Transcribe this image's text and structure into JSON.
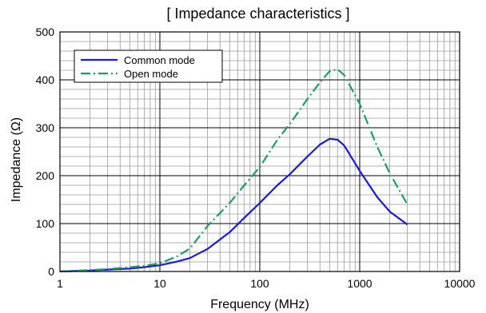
{
  "chart_data": {
    "type": "line",
    "title": "[ Impedance characteristics ]",
    "xlabel": "Frequency (MHz)",
    "ylabel": "Impedance (Ω)",
    "x_scale": "log",
    "xlim": [
      1,
      10000
    ],
    "ylim": [
      0,
      500
    ],
    "x_ticks": [
      1,
      10,
      100,
      1000,
      10000
    ],
    "x_tick_labels": [
      "1",
      "10",
      "100",
      "1000",
      "10000"
    ],
    "y_ticks": [
      0,
      100,
      200,
      300,
      400,
      500
    ],
    "y_tick_labels": [
      "0",
      "100",
      "200",
      "300",
      "400",
      "500"
    ],
    "grid": true,
    "legend_position": "top-left",
    "series": [
      {
        "name": "Common mode",
        "color": "#1a1adc",
        "style": "solid",
        "x": [
          1,
          2,
          3,
          5,
          7,
          10,
          15,
          20,
          30,
          50,
          70,
          100,
          150,
          200,
          300,
          400,
          500,
          600,
          700,
          1000,
          1500,
          2000,
          3000
        ],
        "y": [
          0,
          2,
          4,
          6,
          9,
          13,
          21,
          28,
          47,
          82,
          112,
          143,
          180,
          203,
          240,
          265,
          277,
          275,
          263,
          210,
          155,
          125,
          98
        ]
      },
      {
        "name": "Open mode",
        "color": "#1aa060",
        "style": "dash-dot",
        "x": [
          1,
          2,
          3,
          5,
          7,
          10,
          15,
          20,
          30,
          50,
          70,
          100,
          150,
          200,
          300,
          400,
          500,
          600,
          700,
          1000,
          1500,
          2000,
          3000
        ],
        "y": [
          0,
          3,
          5,
          9,
          12,
          17,
          32,
          48,
          95,
          143,
          180,
          218,
          275,
          308,
          360,
          395,
          418,
          422,
          410,
          350,
          260,
          205,
          140
        ]
      }
    ]
  }
}
